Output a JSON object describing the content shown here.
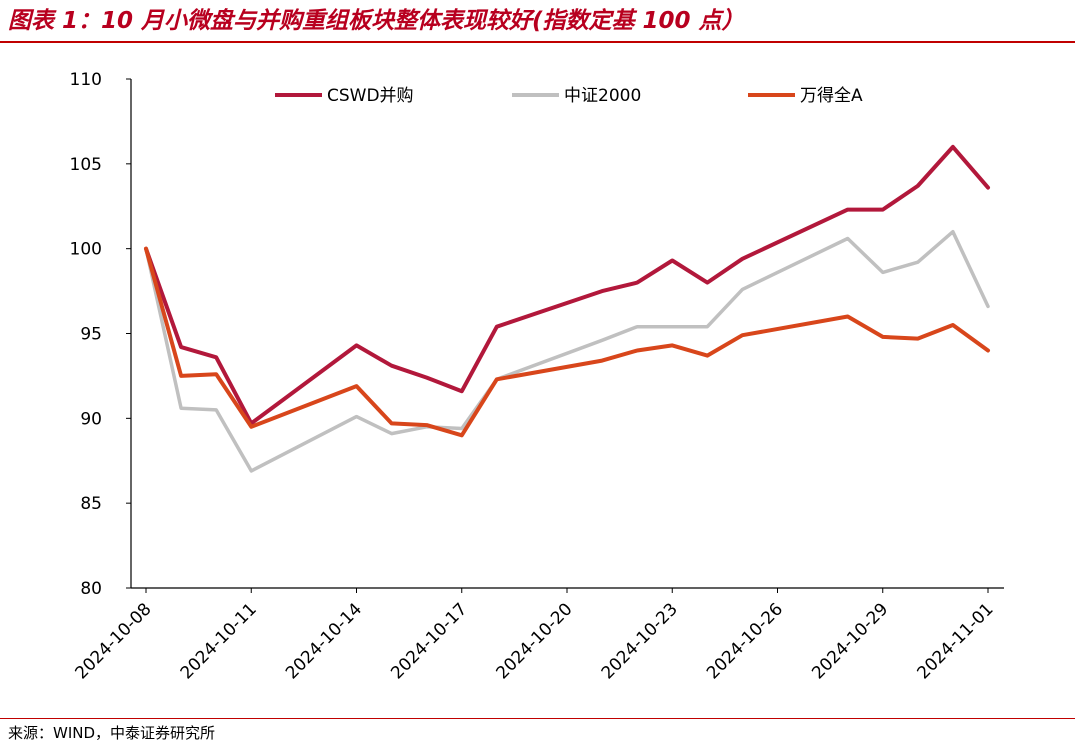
{
  "header": {
    "title": "图表 1：10 月小微盘与并购重组板块整体表现较好(指数定基 100 点）"
  },
  "footer": {
    "source": "来源：WIND，中泰证券研究所"
  },
  "colors": {
    "title": "#b8001f",
    "rule": "#c00000"
  },
  "chart_data": {
    "type": "line",
    "title": "",
    "xlabel": "",
    "ylabel": "",
    "ylim": [
      80,
      110
    ],
    "yticks": [
      80,
      85,
      90,
      95,
      100,
      105,
      110
    ],
    "x": [
      "2024-10-08",
      "2024-10-09",
      "2024-10-10",
      "2024-10-11",
      "2024-10-14",
      "2024-10-15",
      "2024-10-16",
      "2024-10-17",
      "2024-10-18",
      "2024-10-21",
      "2024-10-22",
      "2024-10-23",
      "2024-10-24",
      "2024-10-25",
      "2024-10-28",
      "2024-10-29",
      "2024-10-30",
      "2024-10-31",
      "2024-11-01"
    ],
    "xticks": [
      "2024-10-08",
      "2024-10-11",
      "2024-10-14",
      "2024-10-17",
      "2024-10-20",
      "2024-10-23",
      "2024-10-26",
      "2024-10-29",
      "2024-11-01"
    ],
    "grid": false,
    "legend_position": "top",
    "series": [
      {
        "name": "CSWD并购",
        "color": "#b2183b",
        "values": [
          100.0,
          94.2,
          93.6,
          89.7,
          94.3,
          93.1,
          92.4,
          91.6,
          95.4,
          97.5,
          98.0,
          99.3,
          98.0,
          99.4,
          102.3,
          102.3,
          103.7,
          106.0,
          103.6
        ]
      },
      {
        "name": "中证2000",
        "color": "#c0c0c0",
        "values": [
          100.0,
          90.6,
          90.5,
          86.9,
          90.1,
          89.1,
          89.5,
          89.4,
          92.3,
          94.6,
          95.4,
          95.4,
          95.4,
          97.6,
          100.6,
          98.6,
          99.2,
          101.0,
          96.6
        ]
      },
      {
        "name": "万得全A",
        "color": "#d8461b",
        "values": [
          100.0,
          92.5,
          92.6,
          89.5,
          91.9,
          89.7,
          89.6,
          89.0,
          92.3,
          93.4,
          94.0,
          94.3,
          93.7,
          94.9,
          96.0,
          94.8,
          94.7,
          95.5,
          94.0
        ]
      }
    ]
  }
}
